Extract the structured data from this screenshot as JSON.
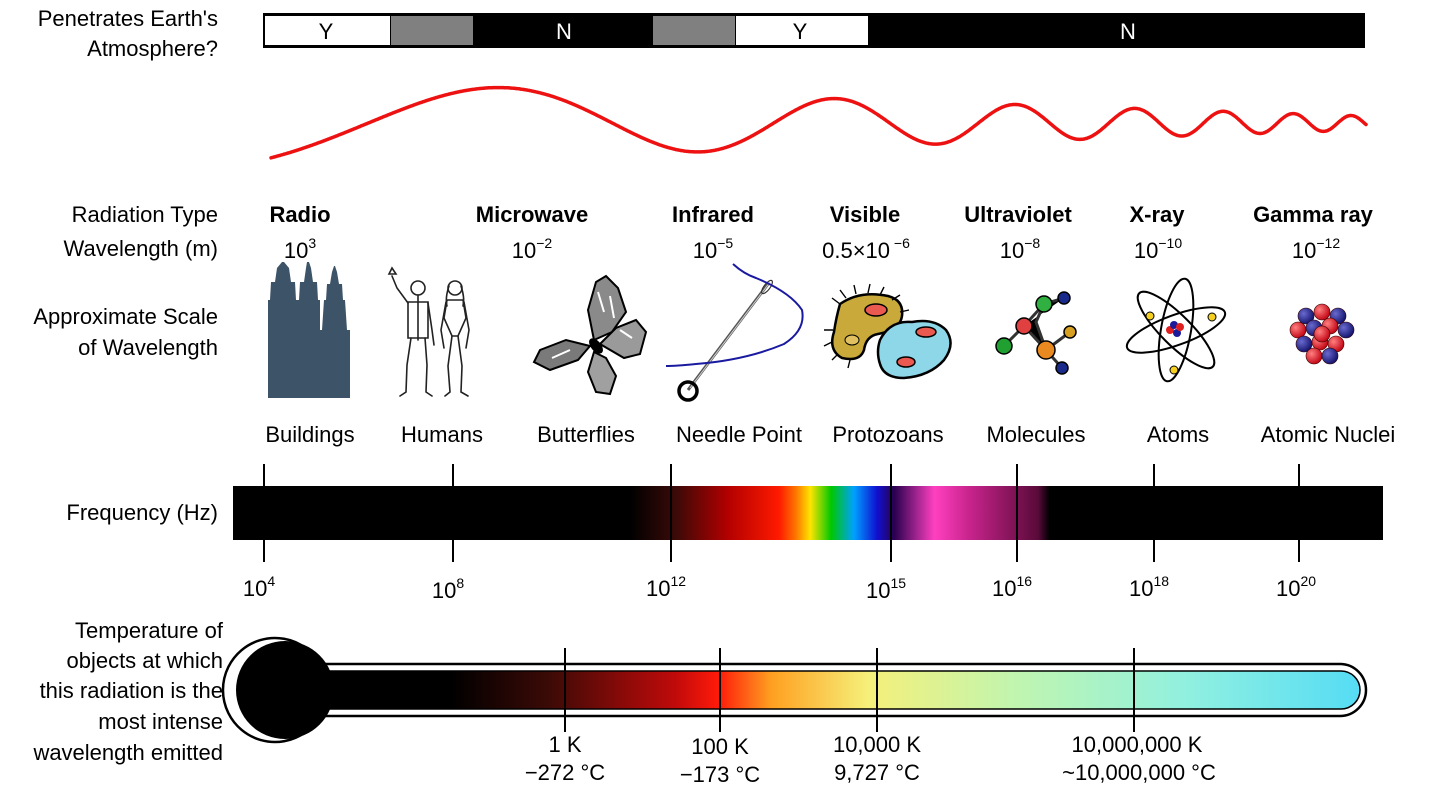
{
  "atmosphere": {
    "label_lines": [
      "Penetrates Earth's",
      "Atmosphere?"
    ],
    "segments": [
      "Y",
      "",
      "N",
      "",
      "Y",
      "N"
    ]
  },
  "row_labels": {
    "radiation_type": "Radiation Type",
    "wavelength": "Wavelength (m)",
    "scale_lines": [
      "Approximate Scale",
      "of Wavelength"
    ],
    "frequency": "Frequency (Hz)",
    "temperature_lines": [
      "Temperature of",
      "objects at which",
      "this radiation is the",
      "most intense",
      "wavelength emitted"
    ]
  },
  "radiation_types": [
    {
      "name": "Radio",
      "wl_base": "10",
      "wl_exp": "3"
    },
    {
      "name": "Microwave",
      "wl_base": "10",
      "wl_exp": "−2"
    },
    {
      "name": "Infrared",
      "wl_base": "10",
      "wl_exp": "−5"
    },
    {
      "name": "Visible",
      "wl_base": "0.5×10",
      "wl_exp": " −6"
    },
    {
      "name": "Ultraviolet",
      "wl_base": "10",
      "wl_exp": "−8"
    },
    {
      "name": "X-ray",
      "wl_base": "10",
      "wl_exp": "−10"
    },
    {
      "name": "Gamma ray",
      "wl_base": "10",
      "wl_exp": "−12"
    }
  ],
  "scale_objects": [
    {
      "label": "Buildings",
      "icon": "buildings-icon"
    },
    {
      "label": "Humans",
      "icon": "humans-icon"
    },
    {
      "label": "Butterflies",
      "icon": "butterfly-icon"
    },
    {
      "label": "Needle Point",
      "icon": "needle-icon"
    },
    {
      "label": "Protozoans",
      "icon": "protozoan-icon"
    },
    {
      "label": "Molecules",
      "icon": "molecule-icon"
    },
    {
      "label": "Atoms",
      "icon": "atom-icon"
    },
    {
      "label": "Atomic Nuclei",
      "icon": "nucleus-icon"
    }
  ],
  "frequency_ticks": [
    {
      "base": "10",
      "exp": "4"
    },
    {
      "base": "10",
      "exp": "8"
    },
    {
      "base": "10",
      "exp": "12"
    },
    {
      "base": "10",
      "exp": "15"
    },
    {
      "base": "10",
      "exp": "16"
    },
    {
      "base": "10",
      "exp": "18"
    },
    {
      "base": "10",
      "exp": "20"
    }
  ],
  "temperature_ticks": [
    {
      "kelvin": "1 K",
      "celsius": "−272 °C"
    },
    {
      "kelvin": "100 K",
      "celsius": "−173 °C"
    },
    {
      "kelvin": "10,000 K",
      "celsius": "9,727 °C"
    },
    {
      "kelvin": "10,000,000 K",
      "celsius": "~10,000,000 °C"
    }
  ],
  "colors": {
    "wave": "#ee1111",
    "bar_black": "#000000",
    "bar_gray": "#808080",
    "thermometer_end": "#55dcf5"
  }
}
